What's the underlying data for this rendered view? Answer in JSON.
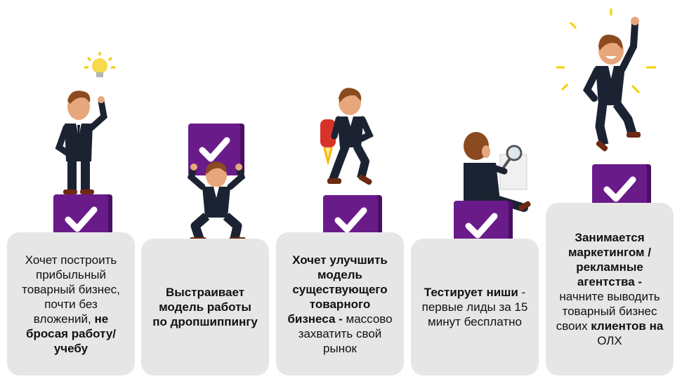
{
  "colors": {
    "card_bg": "#e6e6e6",
    "check_purple": "#6a1b8a",
    "suit": "#1b2333",
    "skin": "#e8a67c",
    "hair": "#8b4a1f"
  },
  "steps": [
    {
      "pre": "Хочет построить прибыльный товарный бизнес, почти без вложений, ",
      "bold": "не бросая работу/учебу",
      "post": ""
    },
    {
      "pre": "",
      "bold": "Выстраивает модель работы по дропшиппингу",
      "post": ""
    },
    {
      "pre": "",
      "bold": "Хочет улучшить модель существующего товарного бизнеса -",
      "post": " массово захватить свой рынок"
    },
    {
      "pre": "",
      "bold": "Тестирует ниши",
      "post": " - первые лиды за 15 минут бесплатно"
    },
    {
      "pre": "",
      "bold": "Занимается маркетингом / рекламные агентства -",
      "post": " начните выводить товарный бизнес своих ",
      "bold2": "клиентов на",
      "post2": " ОЛХ"
    }
  ]
}
